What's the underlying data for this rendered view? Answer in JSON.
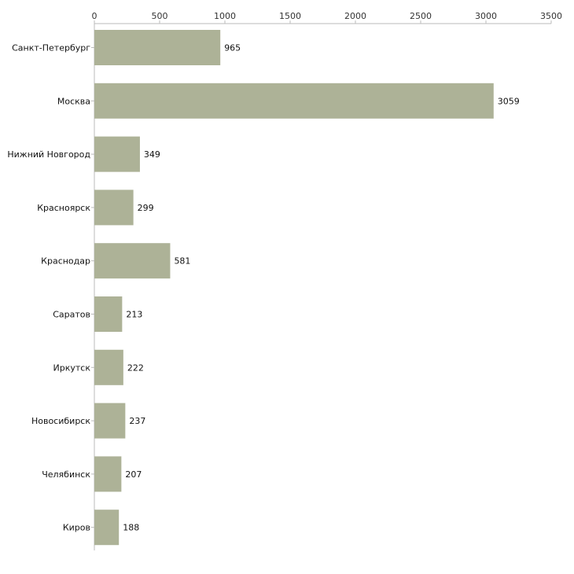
{
  "chart_data": {
    "type": "bar",
    "orientation": "horizontal",
    "title": "",
    "xlabel": "",
    "ylabel": "",
    "xlim": [
      0,
      3500
    ],
    "ticks": [
      0,
      500,
      1000,
      1500,
      2000,
      2500,
      3000,
      3500
    ],
    "grid": false,
    "bar_color": "#adb297",
    "categories": [
      "Санкт-Петербург",
      "Москва",
      "Нижний Новгород",
      "Красноярск",
      "Краснодар",
      "Саратов",
      "Иркутск",
      "Новосибирск",
      "Челябинск",
      "Киров"
    ],
    "values": [
      965,
      3059,
      349,
      299,
      581,
      213,
      222,
      237,
      207,
      188
    ]
  }
}
